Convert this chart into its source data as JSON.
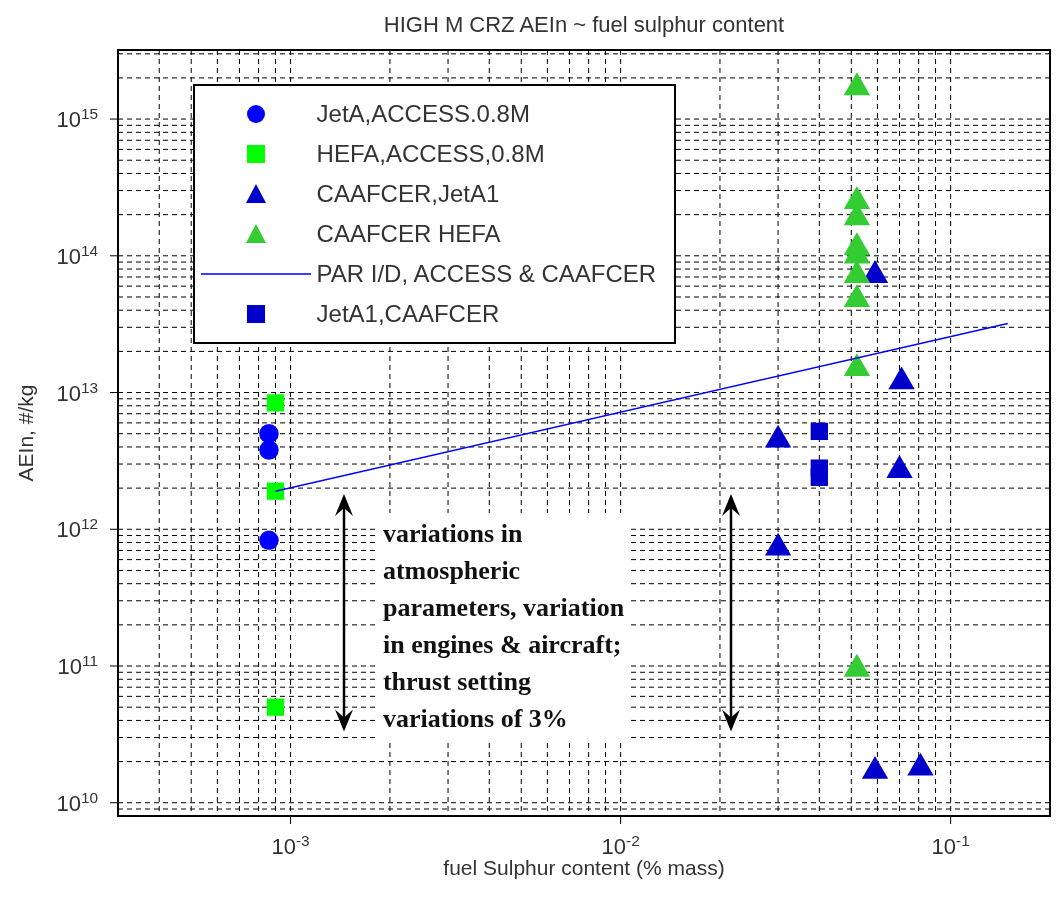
{
  "chart_data": {
    "type": "scatter",
    "title": "HIGH M CRZ AEIn  ~ fuel sulphur content",
    "xlabel": "fuel Sulphur content (% mass)",
    "ylabel": "AEIn, #/kg",
    "log": "xy",
    "grid": true,
    "legend": "top left",
    "xlim": [
      0.0003,
      0.2
    ],
    "ylim": [
      8000000000,
      3200000000000000
    ],
    "xticks": [
      {
        "value": 0.001,
        "label": "10$^{-3}$"
      },
      {
        "value": 0.01,
        "label": "10$^{-2}$"
      },
      {
        "value": 0.1,
        "label": "10$^{-1}$"
      }
    ],
    "yticks": [
      {
        "value": 10000000000,
        "label": "10$^{10}$"
      },
      {
        "value": 100000000000,
        "label": "10$^{11}$"
      },
      {
        "value": 1000000000000,
        "label": "10$^{12}$"
      },
      {
        "value": 10000000000000,
        "label": "10$^{13}$"
      },
      {
        "value": 100000000000000,
        "label": "10$^{14}$"
      },
      {
        "value": 1000000000000000,
        "label": "10$^{15}$"
      }
    ],
    "annotations": [
      "variations in\natmospheric\nparameters, variation\nin engines & aircraft;\nthrust setting\nvariations of 3%"
    ],
    "series": [
      {
        "name": "JetA,ACCESS.0.8M",
        "type": "scatter",
        "marker": "circle",
        "color": "#0000ff",
        "x": [
          0.00086,
          0.00086,
          0.00086
        ],
        "values": [
          5000000000000,
          3800000000000,
          830000000000
        ]
      },
      {
        "name": "HEFA,ACCESS,0.8M",
        "type": "scatter",
        "marker": "square",
        "color": "#00ff00",
        "x": [
          0.0009,
          0.0009,
          0.0009
        ],
        "values": [
          8400000000000,
          1900000000000,
          50000000000
        ]
      },
      {
        "name": "CAAFCER,JetA1",
        "type": "scatter",
        "marker": "triangle",
        "color": "#0000cc",
        "x": [
          0.059,
          0.071,
          0.03,
          0.07,
          0.03,
          0.059,
          0.081
        ],
        "values": [
          72000000000000,
          12000000000000,
          4500000000000,
          2700000000000,
          730000000000,
          17000000000,
          18000000000
        ]
      },
      {
        "name": "CAAFCER HEFA",
        "type": "scatter",
        "marker": "triangle",
        "color": "#33cc33",
        "x": [
          0.052,
          0.052,
          0.052,
          0.052,
          0.052,
          0.052,
          0.052,
          0.052,
          0.052
        ],
        "values": [
          1700000000000000,
          250000000000000,
          190000000000000,
          115000000000000,
          100000000000000,
          72000000000000,
          48000000000000,
          15000000000000,
          95000000000
        ]
      },
      {
        "name": "PAR I/D, ACCESS & CAAFCER",
        "type": "line",
        "marker": "none",
        "color": "#0000ff",
        "x": [
          0.0009,
          0.149
        ],
        "values": [
          1900000000000,
          32000000000000
        ]
      },
      {
        "name": "JetA1,CAAFCER",
        "type": "scatter",
        "marker": "square",
        "color": "#0000cc",
        "x": [
          0.04,
          0.04,
          0.04
        ],
        "values": [
          5200000000000,
          2800000000000,
          2400000000000
        ]
      }
    ]
  }
}
